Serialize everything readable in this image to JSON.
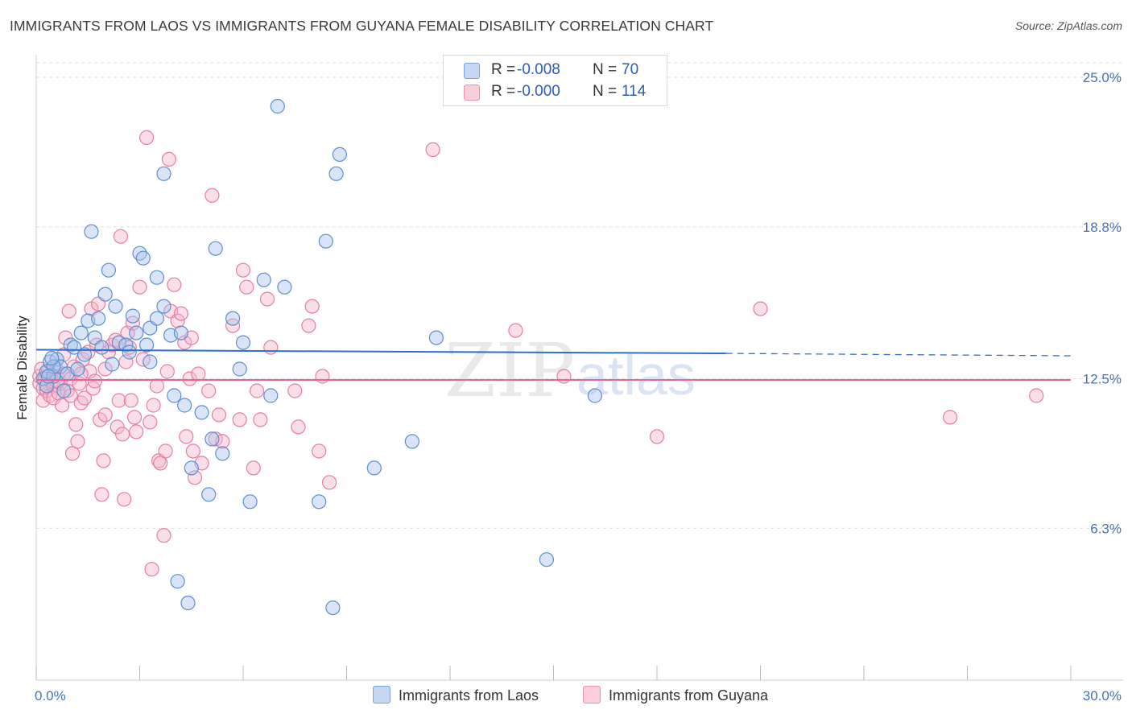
{
  "title": "IMMIGRANTS FROM LAOS VS IMMIGRANTS FROM GUYANA FEMALE DISABILITY CORRELATION CHART",
  "source": "Source: ZipAtlas.com",
  "watermark": {
    "zip": "ZIP",
    "atlas": "atlas"
  },
  "legend": {
    "laos": {
      "r_label": "R =",
      "r_value": "-0.008",
      "n_label": "N =",
      "n_value": "70"
    },
    "guyana": {
      "r_label": "R =",
      "r_value": "-0.000",
      "n_label": "N =",
      "n_value": "114"
    }
  },
  "bottom_legend": {
    "laos": "Immigrants from Laos",
    "guyana": "Immigrants from Guyana"
  },
  "colors": {
    "laos_fill": "#aac4ea",
    "laos_stroke": "#5b8fd4",
    "laos_line": "#2f6fc9",
    "guyana_fill": "#f4b6cb",
    "guyana_stroke": "#e57fa0",
    "guyana_line": "#e8649a",
    "tick_text": "#4472c4",
    "grid": "#dddddd"
  },
  "chart_data": {
    "type": "scatter",
    "title": "IMMIGRANTS FROM LAOS VS IMMIGRANTS FROM GUYANA FEMALE DISABILITY CORRELATION CHART",
    "xlabel": "",
    "ylabel": "Female Disability",
    "xlim": [
      0,
      30
    ],
    "ylim": [
      0,
      25.5
    ],
    "x_tick_labels": [
      "0.0%",
      "30.0%"
    ],
    "y_ticks": [
      6.3,
      12.5,
      18.8,
      25.0
    ],
    "y_tick_labels": [
      "6.3%",
      "12.5%",
      "18.8%",
      "25.0%"
    ],
    "grid": "horizontal dashed",
    "legend_position": "top-center",
    "series": [
      {
        "name": "Immigrants from Laos",
        "r": -0.008,
        "n": 70,
        "trend": {
          "x0": 0.0,
          "y0": 13.7,
          "x1": 20.0,
          "y1": 13.55,
          "dashed_to_x": 30.0,
          "dashed_to_y": 13.45
        },
        "points": [
          [
            0.2,
            12.5
          ],
          [
            0.3,
            12.8
          ],
          [
            0.4,
            13.2
          ],
          [
            0.5,
            12.6
          ],
          [
            0.6,
            13.3
          ],
          [
            0.7,
            13.0
          ],
          [
            0.9,
            12.7
          ],
          [
            1.0,
            13.9
          ],
          [
            1.1,
            13.8
          ],
          [
            1.3,
            14.4
          ],
          [
            1.5,
            14.9
          ],
          [
            1.6,
            18.6
          ],
          [
            1.7,
            14.2
          ],
          [
            1.8,
            15.0
          ],
          [
            2.0,
            16.0
          ],
          [
            2.1,
            17.0
          ],
          [
            2.3,
            15.5
          ],
          [
            2.4,
            14.0
          ],
          [
            2.6,
            13.9
          ],
          [
            2.8,
            15.1
          ],
          [
            2.9,
            14.4
          ],
          [
            3.0,
            17.7
          ],
          [
            3.1,
            17.5
          ],
          [
            3.2,
            13.9
          ],
          [
            3.3,
            14.6
          ],
          [
            3.3,
            13.2
          ],
          [
            3.5,
            15.0
          ],
          [
            3.5,
            16.7
          ],
          [
            3.7,
            15.5
          ],
          [
            3.9,
            14.3
          ],
          [
            3.7,
            21.0
          ],
          [
            4.0,
            11.8
          ],
          [
            4.1,
            4.1
          ],
          [
            4.2,
            14.4
          ],
          [
            4.3,
            11.4
          ],
          [
            4.4,
            3.2
          ],
          [
            4.5,
            8.8
          ],
          [
            4.8,
            11.1
          ],
          [
            5.0,
            7.7
          ],
          [
            5.1,
            10.0
          ],
          [
            5.2,
            17.9
          ],
          [
            5.4,
            9.4
          ],
          [
            5.7,
            15.0
          ],
          [
            5.9,
            12.9
          ],
          [
            6.0,
            14.0
          ],
          [
            6.2,
            7.4
          ],
          [
            6.6,
            16.6
          ],
          [
            6.8,
            11.8
          ],
          [
            7.0,
            23.8
          ],
          [
            7.2,
            16.3
          ],
          [
            8.2,
            7.4
          ],
          [
            8.4,
            18.2
          ],
          [
            8.6,
            3.0
          ],
          [
            8.7,
            21.0
          ],
          [
            8.8,
            21.8
          ],
          [
            9.8,
            8.8
          ],
          [
            10.9,
            9.9
          ],
          [
            11.6,
            14.2
          ],
          [
            14.8,
            5.0
          ],
          [
            16.2,
            11.8
          ],
          [
            0.3,
            12.2
          ],
          [
            0.5,
            13.0
          ],
          [
            0.8,
            12.0
          ],
          [
            1.2,
            12.9
          ],
          [
            1.4,
            13.5
          ],
          [
            2.2,
            13.1
          ],
          [
            2.7,
            13.6
          ],
          [
            0.35,
            12.6
          ],
          [
            0.45,
            13.35
          ],
          [
            1.9,
            13.8
          ]
        ]
      },
      {
        "name": "Immigrants from Guyana",
        "r": -0.0,
        "n": 114,
        "trend": {
          "x0": 0.0,
          "y0": 12.45,
          "x1": 30.0,
          "y1": 12.45
        },
        "points": [
          [
            0.1,
            12.3
          ],
          [
            0.1,
            12.6
          ],
          [
            0.15,
            12.9
          ],
          [
            0.2,
            12.1
          ],
          [
            0.2,
            11.6
          ],
          [
            0.25,
            12.5
          ],
          [
            0.3,
            12.0
          ],
          [
            0.35,
            12.8
          ],
          [
            0.4,
            11.8
          ],
          [
            0.45,
            12.4
          ],
          [
            0.5,
            12.2
          ],
          [
            0.5,
            11.7
          ],
          [
            0.55,
            13.0
          ],
          [
            0.6,
            12.6
          ],
          [
            0.65,
            11.9
          ],
          [
            0.7,
            12.3
          ],
          [
            0.75,
            11.4
          ],
          [
            0.8,
            12.7
          ],
          [
            0.8,
            13.5
          ],
          [
            0.85,
            14.2
          ],
          [
            0.9,
            12.0
          ],
          [
            0.95,
            15.3
          ],
          [
            1.0,
            12.5
          ],
          [
            1.0,
            11.8
          ],
          [
            1.05,
            9.4
          ],
          [
            1.1,
            13.0
          ],
          [
            1.15,
            10.6
          ],
          [
            1.2,
            9.9
          ],
          [
            1.25,
            12.3
          ],
          [
            1.3,
            11.5
          ],
          [
            1.35,
            13.3
          ],
          [
            1.4,
            11.7
          ],
          [
            1.5,
            13.6
          ],
          [
            1.55,
            12.8
          ],
          [
            1.6,
            15.4
          ],
          [
            1.65,
            12.1
          ],
          [
            1.7,
            12.4
          ],
          [
            1.75,
            13.9
          ],
          [
            1.8,
            15.6
          ],
          [
            1.85,
            10.8
          ],
          [
            1.9,
            7.7
          ],
          [
            1.95,
            9.1
          ],
          [
            2.0,
            12.9
          ],
          [
            2.1,
            13.6
          ],
          [
            2.2,
            13.9
          ],
          [
            2.3,
            14.1
          ],
          [
            2.35,
            10.5
          ],
          [
            2.4,
            11.6
          ],
          [
            2.45,
            18.4
          ],
          [
            2.5,
            10.2
          ],
          [
            2.55,
            7.5
          ],
          [
            2.6,
            13.2
          ],
          [
            2.65,
            14.4
          ],
          [
            2.7,
            13.8
          ],
          [
            2.75,
            11.6
          ],
          [
            2.8,
            14.8
          ],
          [
            2.85,
            10.9
          ],
          [
            2.9,
            10.3
          ],
          [
            3.0,
            16.3
          ],
          [
            3.1,
            13.3
          ],
          [
            3.2,
            22.5
          ],
          [
            3.3,
            10.7
          ],
          [
            3.35,
            4.6
          ],
          [
            3.4,
            11.4
          ],
          [
            3.5,
            12.2
          ],
          [
            3.55,
            9.1
          ],
          [
            3.6,
            9.0
          ],
          [
            3.7,
            6.0
          ],
          [
            3.75,
            9.5
          ],
          [
            3.8,
            12.8
          ],
          [
            3.85,
            21.6
          ],
          [
            3.9,
            15.3
          ],
          [
            4.0,
            16.4
          ],
          [
            4.1,
            14.9
          ],
          [
            4.2,
            15.2
          ],
          [
            4.3,
            14.0
          ],
          [
            4.35,
            10.1
          ],
          [
            4.45,
            12.5
          ],
          [
            4.5,
            14.2
          ],
          [
            4.55,
            9.5
          ],
          [
            4.6,
            8.4
          ],
          [
            4.7,
            12.7
          ],
          [
            4.8,
            9.0
          ],
          [
            5.0,
            12.0
          ],
          [
            5.1,
            20.1
          ],
          [
            5.2,
            10.0
          ],
          [
            5.3,
            11.0
          ],
          [
            5.4,
            9.9
          ],
          [
            5.7,
            14.7
          ],
          [
            5.9,
            10.8
          ],
          [
            6.0,
            17.0
          ],
          [
            6.1,
            16.3
          ],
          [
            6.3,
            8.8
          ],
          [
            6.4,
            12.0
          ],
          [
            6.5,
            10.8
          ],
          [
            6.7,
            15.8
          ],
          [
            6.8,
            13.8
          ],
          [
            7.5,
            12.0
          ],
          [
            7.6,
            10.5
          ],
          [
            7.9,
            14.7
          ],
          [
            8.0,
            15.5
          ],
          [
            8.2,
            9.5
          ],
          [
            8.3,
            12.6
          ],
          [
            8.5,
            8.2
          ],
          [
            11.5,
            22.0
          ],
          [
            13.9,
            14.5
          ],
          [
            15.3,
            12.6
          ],
          [
            18.0,
            10.1
          ],
          [
            21.0,
            15.4
          ],
          [
            26.5,
            10.9
          ],
          [
            29.0,
            11.8
          ],
          [
            0.6,
            12.4
          ],
          [
            1.3,
            12.7
          ],
          [
            2.0,
            11.0
          ]
        ]
      }
    ]
  }
}
